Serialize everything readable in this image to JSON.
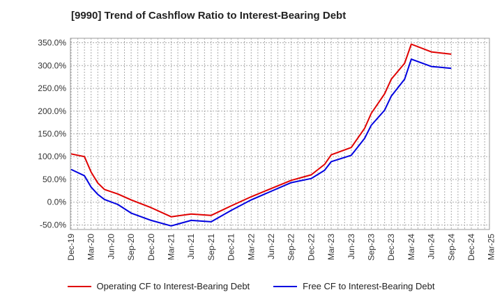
{
  "chart_data": {
    "type": "line",
    "title": "[9990]  Trend of Cashflow Ratio to Interest-Bearing Debt",
    "y_unit": "%",
    "ylim": [
      -60,
      360
    ],
    "yticks": [
      -50,
      0,
      50,
      100,
      150,
      200,
      250,
      300,
      350
    ],
    "ytick_labels": [
      "-50.0%",
      "0.0%",
      "50.0%",
      "100.0%",
      "150.0%",
      "200.0%",
      "250.0%",
      "300.0%",
      "350.0%"
    ],
    "x": [
      "Dec-19",
      "Mar-20",
      "Jun-20",
      "Sep-20",
      "Dec-20",
      "Mar-21",
      "Jun-21",
      "Sep-21",
      "Dec-21",
      "Mar-22",
      "Jun-22",
      "Sep-22",
      "Dec-22",
      "Mar-23",
      "Jun-23",
      "Sep-23",
      "Dec-23",
      "Mar-24",
      "Jun-24",
      "Sep-24",
      "Dec-24",
      "Mar-25"
    ],
    "grid": true,
    "legend_position": "bottom",
    "series": [
      {
        "name": "Operating CF to Interest-Bearing Debt",
        "color": "#e00000",
        "points": [
          [
            "Dec-19",
            106
          ],
          [
            "Feb-20",
            100
          ],
          [
            "Mar-20",
            66
          ],
          [
            "Apr-20",
            42
          ],
          [
            "May-20",
            28
          ],
          [
            "Jul-20",
            18
          ],
          [
            "Sep-20",
            5
          ],
          [
            "Dec-20",
            -12
          ],
          [
            "Mar-21",
            -32
          ],
          [
            "Jun-21",
            -26
          ],
          [
            "Sep-21",
            -29
          ],
          [
            "Dec-21",
            -8
          ],
          [
            "Mar-22",
            12
          ],
          [
            "Jun-22",
            30
          ],
          [
            "Sep-22",
            48
          ],
          [
            "Dec-22",
            60
          ],
          [
            "Feb-23",
            83
          ],
          [
            "Mar-23",
            104
          ],
          [
            "Jun-23",
            120
          ],
          [
            "Aug-23",
            162
          ],
          [
            "Sep-23",
            195
          ],
          [
            "Nov-23",
            238
          ],
          [
            "Dec-23",
            270
          ],
          [
            "Feb-24",
            305
          ],
          [
            "Mar-24",
            347
          ],
          [
            "Jun-24",
            330
          ],
          [
            "Sep-24",
            325
          ]
        ]
      },
      {
        "name": "Free CF to Interest-Bearing Debt",
        "color": "#0000e0",
        "points": [
          [
            "Dec-19",
            72
          ],
          [
            "Feb-20",
            58
          ],
          [
            "Mar-20",
            33
          ],
          [
            "Apr-20",
            17
          ],
          [
            "May-20",
            6
          ],
          [
            "Jul-20",
            -5
          ],
          [
            "Sep-20",
            -24
          ],
          [
            "Dec-20",
            -40
          ],
          [
            "Mar-21",
            -52
          ],
          [
            "Jun-21",
            -40
          ],
          [
            "Sep-21",
            -43
          ],
          [
            "Dec-21",
            -18
          ],
          [
            "Mar-22",
            5
          ],
          [
            "Jun-22",
            24
          ],
          [
            "Sep-22",
            43
          ],
          [
            "Dec-22",
            52
          ],
          [
            "Feb-23",
            70
          ],
          [
            "Mar-23",
            89
          ],
          [
            "Jun-23",
            103
          ],
          [
            "Aug-23",
            140
          ],
          [
            "Sep-23",
            169
          ],
          [
            "Nov-23",
            202
          ],
          [
            "Dec-23",
            233
          ],
          [
            "Feb-24",
            270
          ],
          [
            "Mar-24",
            314
          ],
          [
            "Jun-24",
            298
          ],
          [
            "Sep-24",
            294
          ]
        ]
      }
    ]
  }
}
